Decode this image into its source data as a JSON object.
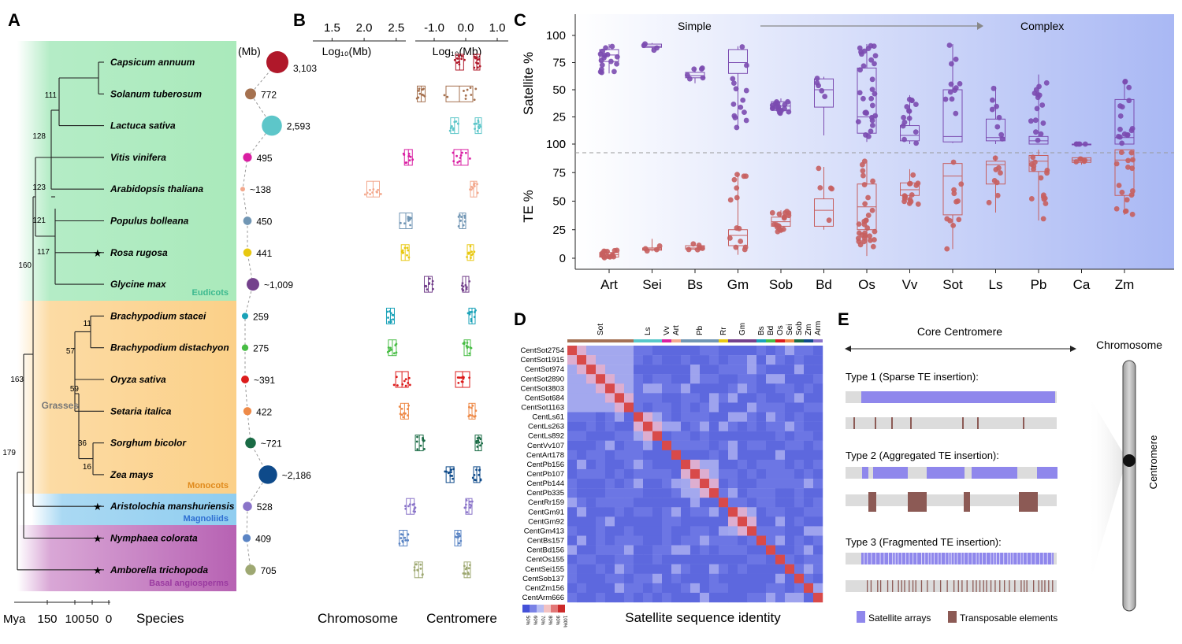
{
  "figure": {
    "panels": {
      "A": "A",
      "B": "B",
      "C": "C",
      "D": "D",
      "E": "E"
    },
    "colors": {
      "eudicots_bg": "#b4ecc6",
      "grasses_bg": "#fcd9a0",
      "magnoliids_bg": "#a9d8f2",
      "basal_bg": "#c47bc0",
      "satellite": "#7b4bb0",
      "te": "#c65f5f",
      "satellite_arrays": "#8f87ec",
      "te_bar": "#8c5a55",
      "eudicots_text": "#3cb98f",
      "magnoliids_text": "#2f6fd2",
      "basal_text": "#9a3aa0",
      "monocots_text": "#e08a1c"
    }
  },
  "panelA": {
    "unit_label": "(Mb)",
    "species": [
      {
        "name": "Capsicum annuum",
        "size": "3,103",
        "color": "#b0182a",
        "mb": 3103
      },
      {
        "name": "Solanum tuberosum",
        "size": "772",
        "color": "#a5714f",
        "mb": 772
      },
      {
        "name": "Lactuca sativa",
        "size": "2,593",
        "color": "#5dc6c9",
        "mb": 2593
      },
      {
        "name": "Vitis vinifera",
        "size": "495",
        "color": "#d91ea2",
        "mb": 495
      },
      {
        "name": "Arabidopsis thaliana",
        "size": "~138",
        "color": "#f3a98e",
        "mb": 138
      },
      {
        "name": "Populus bolleana",
        "size": "450",
        "color": "#7196b4",
        "mb": 450
      },
      {
        "name": "Rosa rugosa",
        "size": "441",
        "color": "#e8c811",
        "mb": 441
      },
      {
        "name": "Glycine max",
        "size": "~1,009",
        "color": "#74418c",
        "mb": 1009
      },
      {
        "name": "Brachypodium stacei",
        "size": "259",
        "color": "#1aa2b8",
        "mb": 259
      },
      {
        "name": "Brachypodium distachyon",
        "size": "275",
        "color": "#48bd45",
        "mb": 275
      },
      {
        "name": "Oryza sativa",
        "size": "~391",
        "color": "#dc1c1c",
        "mb": 391
      },
      {
        "name": "Setaria italica",
        "size": "422",
        "color": "#ee8a48",
        "mb": 422
      },
      {
        "name": "Sorghum bicolor",
        "size": "~721",
        "color": "#1a6b45",
        "mb": 721
      },
      {
        "name": "Zea mays",
        "size": "~2,186",
        "color": "#0e4a8a",
        "mb": 2186
      },
      {
        "name": "Aristolochia manshuriensis",
        "size": "528",
        "color": "#8a74c9",
        "mb": 528
      },
      {
        "name": "Nymphaea colorata",
        "size": "409",
        "color": "#5a84c4",
        "mb": 409
      },
      {
        "name": "Amborella trichopoda",
        "size": "705",
        "color": "#9ea872",
        "mb": 705
      }
    ],
    "nodes": [
      "111",
      "128",
      "123",
      "121",
      "117",
      "160",
      "11",
      "57",
      "59",
      "163",
      "36",
      "16",
      "179"
    ],
    "clades": {
      "eudicots": "Eudicots",
      "grasses": "Grasses",
      "monocots": "Monocots",
      "magnoliids": "Magnoliids",
      "basal": "Basal angiosperms"
    },
    "axis": {
      "label": "Mya",
      "ticks": [
        "150",
        "100",
        "50",
        "0"
      ],
      "species_label": "Species"
    }
  },
  "panelB": {
    "chromosome": {
      "title": "Log₁₀(Mb)",
      "ticks": [
        "1.5",
        "2.0",
        "2.5"
      ],
      "label": "Chromosome",
      "centers": [
        3.49,
        2.89,
        3.41,
        2.69,
        2.14,
        2.65,
        2.64,
        3.0,
        2.41,
        2.44,
        2.59,
        2.63,
        2.86,
        3.34,
        2.72,
        2.61,
        2.85
      ]
    },
    "centromere": {
      "title": "Log₁₀(Mb)",
      "ticks": [
        "-1.0",
        "0.0",
        "1.0"
      ],
      "label": "Centromere",
      "centers": [
        0.35,
        -0.2,
        0.4,
        -0.15,
        0.25,
        -0.1,
        0.15,
        0.0,
        0.2,
        0.05,
        -0.1,
        0.2,
        0.4,
        0.35,
        0.1,
        -0.25,
        0.05
      ]
    }
  },
  "chart_data": {
    "type": "scatter",
    "title": "",
    "header_left": "Simple",
    "header_right": "Complex",
    "categories": [
      "Art",
      "Sei",
      "Bs",
      "Gm",
      "Sob",
      "Bd",
      "Os",
      "Vv",
      "Sot",
      "Ls",
      "Pb",
      "Ca",
      "Zm"
    ],
    "satellite": {
      "ylabel": "Satellite %",
      "ticks": [
        "0",
        "25",
        "50",
        "75",
        "100"
      ],
      "ylim": [
        0,
        100
      ],
      "medians": [
        82,
        90,
        63,
        75,
        35,
        50,
        25,
        8,
        7,
        6,
        3,
        0,
        6
      ],
      "q1": [
        76,
        89,
        61,
        65,
        31,
        34,
        10,
        3,
        2,
        3,
        0,
        0,
        0
      ],
      "q3": [
        87,
        92,
        66,
        87,
        39,
        60,
        70,
        17,
        50,
        23,
        7,
        0,
        41
      ],
      "lo": [
        65,
        85,
        56,
        15,
        28,
        8,
        2,
        0,
        1,
        0,
        0,
        0,
        0
      ],
      "hi": [
        92,
        93,
        70,
        90,
        42,
        62,
        92,
        45,
        92,
        53,
        64,
        0,
        59
      ]
    },
    "te": {
      "ylabel": "TE %",
      "ticks": [
        "0",
        "25",
        "50",
        "75",
        "100"
      ],
      "ylim": [
        0,
        100
      ],
      "medians": [
        3,
        8,
        9,
        20,
        32,
        42,
        45,
        60,
        72,
        82,
        85,
        86,
        86
      ],
      "q1": [
        1,
        7,
        8,
        11,
        28,
        28,
        25,
        55,
        38,
        65,
        76,
        84,
        55
      ],
      "q3": [
        5,
        9,
        11,
        25,
        36,
        52,
        65,
        66,
        83,
        85,
        90,
        88,
        95
      ],
      "lo": [
        0,
        6,
        7,
        3,
        22,
        25,
        2,
        46,
        8,
        40,
        33,
        82,
        38
      ],
      "hi": [
        7,
        17,
        13,
        75,
        42,
        80,
        85,
        78,
        85,
        90,
        95,
        88,
        95
      ]
    }
  },
  "panelD": {
    "group_labels": [
      "Sot",
      "Ls",
      "Vv",
      "Art",
      "Pb",
      "Rr",
      "Gm",
      "Bs",
      "Bd",
      "Os",
      "Sei",
      "Sob",
      "Zm",
      "Arm"
    ],
    "group_colors": [
      "#a57155",
      "#57c7c9",
      "#d91ea2",
      "#f3a98e",
      "#7196b4",
      "#e8c811",
      "#74418c",
      "#1aa2b8",
      "#48bd45",
      "#dc1c1c",
      "#ee8a48",
      "#1a6b45",
      "#0e4a8a",
      "#8a74c9"
    ],
    "rows": [
      "CentSot2754",
      "CentSot1915",
      "CentSot974",
      "CentSot2890",
      "CentSot3803",
      "CentSot684",
      "CentSot1163",
      "CentLs61",
      "CentLs263",
      "CentLs892",
      "CentVv107",
      "CentArt178",
      "CentPb156",
      "CentPb107",
      "CentPb144",
      "CentPb335",
      "CentRr159",
      "CentGm91",
      "CentGm92",
      "CentGm413",
      "CentBs157",
      "CentBd156",
      "CentOs155",
      "CentSei155",
      "CentSob137",
      "CentZm156",
      "CentArm666"
    ],
    "legend_ticks": [
      "50%",
      "60%",
      "70%",
      "80%",
      "90%",
      "100%"
    ],
    "xlabel": "Satellite sequence identity"
  },
  "panelE": {
    "core": "Core Centromere",
    "chromosome": "Chromosome",
    "centromere": "Centromere",
    "types": [
      "Type 1 (Sparse TE insertion):",
      "Type 2 (Aggregated TE insertion):",
      "Type 3 (Fragmented TE insertion):"
    ],
    "legend": [
      "Satellite arrays",
      "Transposable elements"
    ]
  }
}
